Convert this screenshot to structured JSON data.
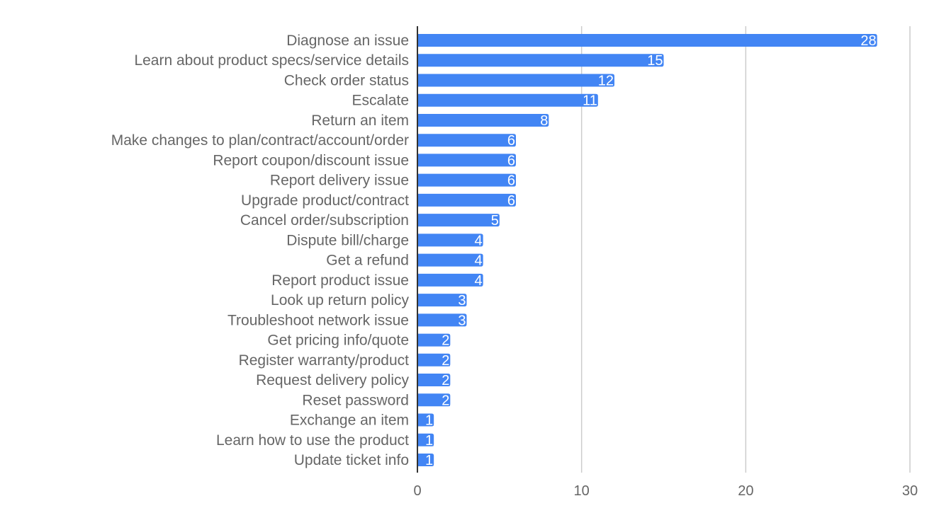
{
  "chart_data": {
    "type": "bar",
    "orientation": "horizontal",
    "categories": [
      "Diagnose an issue",
      "Learn about product specs/service details",
      "Check order status",
      "Escalate",
      "Return an item",
      "Make changes to plan/contract/account/order",
      "Report coupon/discount issue",
      "Report delivery issue",
      "Upgrade product/contract",
      "Cancel order/subscription",
      "Dispute bill/charge",
      "Get a refund",
      "Report product issue",
      "Look up return policy",
      "Troubleshoot network issue",
      "Get pricing info/quote",
      "Register warranty/product",
      "Request delivery policy",
      "Reset password",
      "Exchange an item",
      "Learn how to use the product",
      "Update ticket info"
    ],
    "values": [
      28,
      15,
      12,
      11,
      8,
      6,
      6,
      6,
      6,
      5,
      4,
      4,
      4,
      3,
      3,
      2,
      2,
      2,
      2,
      1,
      1,
      1
    ],
    "xlim": [
      0,
      30
    ],
    "xticks": [
      "0",
      "10",
      "20",
      "30"
    ],
    "grid": true,
    "data_labels": true,
    "legend": "none",
    "bar_color": "#4285f4"
  }
}
